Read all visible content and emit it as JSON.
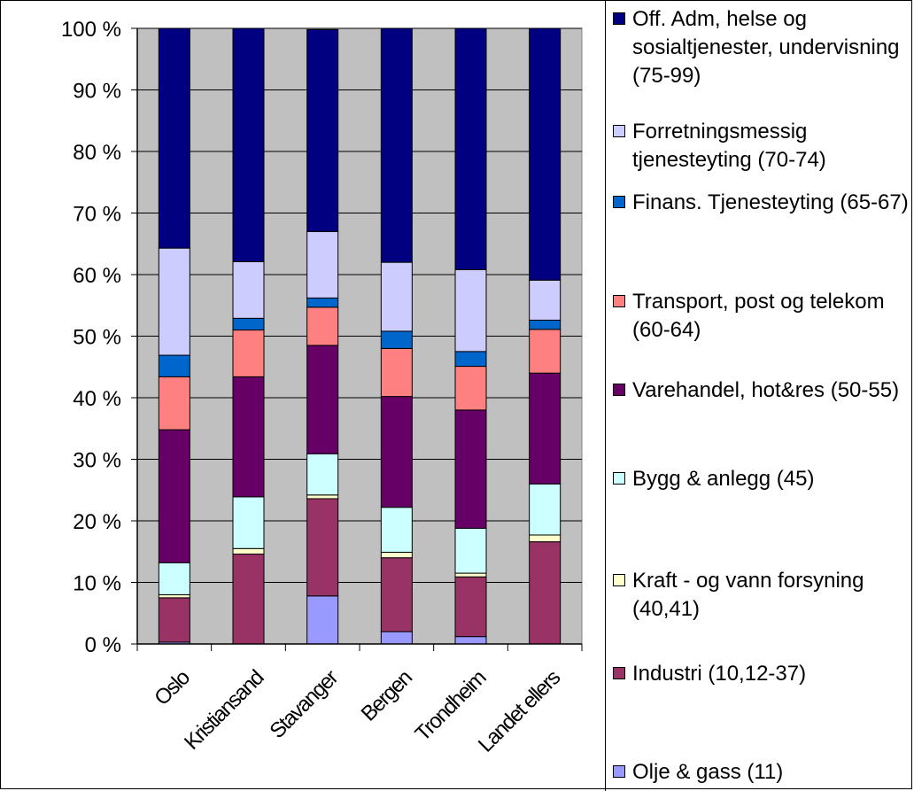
{
  "chart_data": {
    "type": "bar",
    "stacked": true,
    "percent": true,
    "categories": [
      "Oslo",
      "Kristiansand",
      "Stavanger",
      "Bergen",
      "Trondheim",
      "Landet ellers"
    ],
    "y_ticks": [
      "0 %",
      "10 %",
      "20 %",
      "30 %",
      "40 %",
      "50 %",
      "60 %",
      "70 %",
      "80 %",
      "90 %",
      "100 %"
    ],
    "ylim": [
      0,
      100
    ],
    "grid": true,
    "legend_position": "right",
    "series": [
      {
        "name": "Olje & gass (11)",
        "color": "#9999ff",
        "values": [
          0.3,
          0,
          7.8,
          2,
          1.2,
          0
        ]
      },
      {
        "name": "Industri (10,12-37)",
        "color": "#993366",
        "values": [
          7.2,
          14.6,
          15.8,
          12,
          9.7,
          16.6
        ]
      },
      {
        "name": "Kraft - og vann forsyning (40,41)",
        "color": "#ffffcc",
        "values": [
          0.5,
          0.9,
          0.6,
          0.9,
          0.6,
          1.1
        ]
      },
      {
        "name": "Bygg & anlegg (45)",
        "color": "#ccffff",
        "values": [
          5.2,
          8.4,
          6.7,
          7.3,
          7.3,
          8.3
        ]
      },
      {
        "name": "Varehandel, hot&res (50-55)",
        "color": "#660066",
        "values": [
          21.6,
          19.5,
          17.6,
          18,
          19.2,
          18
        ]
      },
      {
        "name": "Transport, post og telekom (60-64)",
        "color": "#ff8080",
        "values": [
          8.6,
          7.6,
          6.2,
          7.8,
          7.1,
          7.1
        ]
      },
      {
        "name": "Finans. Tjenesteyting (65-67)",
        "color": "#0066cc",
        "values": [
          3.5,
          1.9,
          1.5,
          2.8,
          2.4,
          1.5
        ]
      },
      {
        "name": "Forretningsmessig tjenesteyting (70-74)",
        "color": "#ccccff",
        "values": [
          17.4,
          9.2,
          10.8,
          11.2,
          13.3,
          6.5
        ]
      },
      {
        "name": "Off. Adm, helse og sosialtjenester, undervisning (75-99)",
        "color": "#000080",
        "values": [
          35.7,
          37.9,
          32.8,
          38,
          39.2,
          40.9
        ]
      }
    ]
  }
}
